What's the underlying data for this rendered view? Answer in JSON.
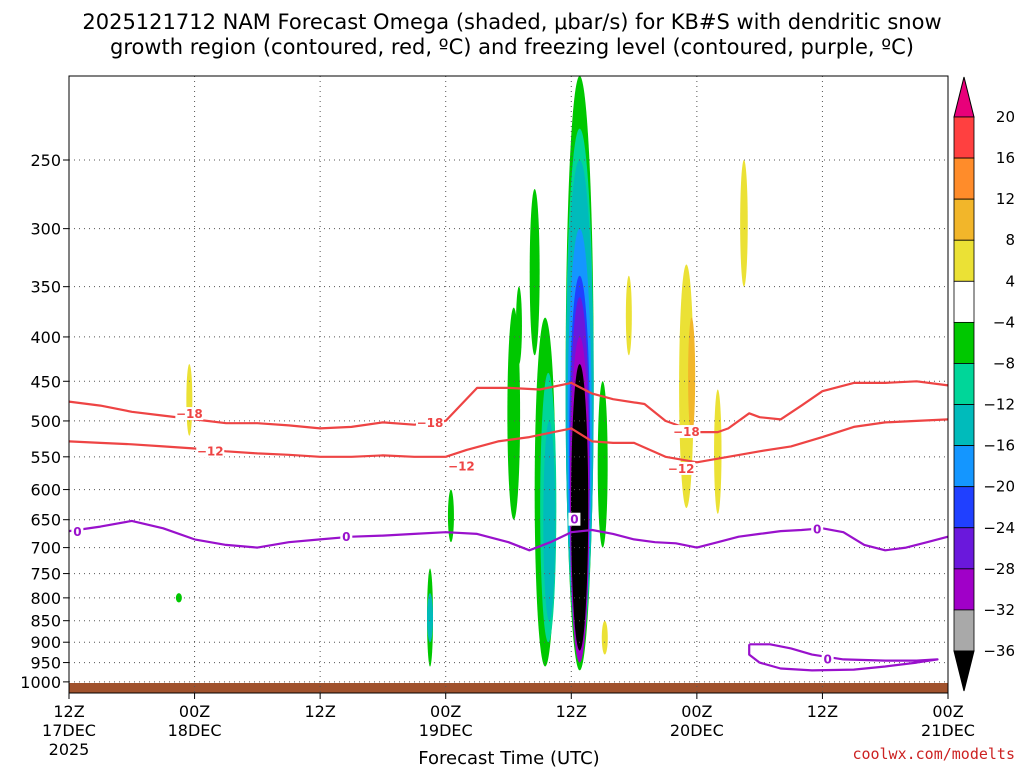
{
  "chart_data": {
    "type": "time-height contour",
    "title_line1": "2025121712 NAM Forecast Omega (shaded, μbar/s) for KB#S with dendritic snow",
    "title_line2": "growth region (contoured, red, ºC) and freezing level (contoured, purple, ºC)",
    "xlabel": "Forecast Time (UTC)",
    "credit": "coolwx.com/modelts",
    "x_range_hours": [
      0,
      84
    ],
    "y_range_hPa": [
      200,
      1030
    ],
    "x_ticks": [
      {
        "hour": 0,
        "line1": "12Z",
        "line2": "17DEC",
        "line3": "2025"
      },
      {
        "hour": 12,
        "line1": "00Z",
        "line2": "18DEC",
        "line3": ""
      },
      {
        "hour": 24,
        "line1": "12Z",
        "line2": "",
        "line3": ""
      },
      {
        "hour": 36,
        "line1": "00Z",
        "line2": "19DEC",
        "line3": ""
      },
      {
        "hour": 48,
        "line1": "12Z",
        "line2": "",
        "line3": ""
      },
      {
        "hour": 60,
        "line1": "00Z",
        "line2": "20DEC",
        "line3": ""
      },
      {
        "hour": 72,
        "line1": "12Z",
        "line2": "",
        "line3": ""
      },
      {
        "hour": 84,
        "line1": "00Z",
        "line2": "21DEC",
        "line3": ""
      }
    ],
    "y_ticks": [
      "250",
      "300",
      "350",
      "400",
      "450",
      "500",
      "550",
      "600",
      "650",
      "700",
      "750",
      "800",
      "850",
      "900",
      "950",
      "1000"
    ],
    "y_tick_values": [
      250,
      300,
      350,
      400,
      450,
      500,
      550,
      600,
      650,
      700,
      750,
      800,
      850,
      900,
      950,
      1000
    ],
    "colorbar": {
      "labels": [
        "20",
        "16",
        "12",
        "8",
        "4",
        "−4",
        "−8",
        "−12",
        "−16",
        "−20",
        "−24",
        "−28",
        "−32",
        "−36"
      ],
      "colors": [
        "#e8007a",
        "#ff4040",
        "#ff8c2a",
        "#f2b62a",
        "#ebe135",
        "#ffffff",
        "#00c800",
        "#00d699",
        "#00bbbb",
        "#1496ff",
        "#2040ff",
        "#6a18dc",
        "#a000c8",
        "#a9a9a9",
        "#000000"
      ]
    },
    "colors": {
      "dgz": "#ee4444",
      "freezing": "#9911cc",
      "terrain": "#a0522d",
      "credit": "#cc2222"
    },
    "dgz_minus18": [
      [
        0,
        475
      ],
      [
        3,
        480
      ],
      [
        6,
        488
      ],
      [
        9,
        493
      ],
      [
        12,
        498
      ],
      [
        15,
        503
      ],
      [
        18,
        503
      ],
      [
        21,
        506
      ],
      [
        24,
        510
      ],
      [
        27,
        508
      ],
      [
        30,
        502
      ],
      [
        33,
        505
      ],
      [
        36,
        500
      ],
      [
        39,
        458
      ],
      [
        42,
        458
      ],
      [
        45,
        460
      ],
      [
        48,
        452
      ],
      [
        50,
        465
      ],
      [
        52,
        472
      ],
      [
        55,
        478
      ],
      [
        57,
        500
      ],
      [
        60,
        515
      ],
      [
        62,
        515
      ],
      [
        63,
        510
      ],
      [
        65,
        490
      ],
      [
        66,
        495
      ],
      [
        68,
        498
      ],
      [
        70,
        480
      ],
      [
        72,
        462
      ],
      [
        75,
        452
      ],
      [
        78,
        452
      ],
      [
        81,
        450
      ],
      [
        84,
        455
      ]
    ],
    "dgz_minus12": [
      [
        0,
        528
      ],
      [
        3,
        530
      ],
      [
        6,
        532
      ],
      [
        9,
        535
      ],
      [
        12,
        538
      ],
      [
        15,
        542
      ],
      [
        18,
        545
      ],
      [
        21,
        547
      ],
      [
        24,
        550
      ],
      [
        27,
        550
      ],
      [
        30,
        548
      ],
      [
        33,
        550
      ],
      [
        36,
        550
      ],
      [
        38,
        540
      ],
      [
        41,
        528
      ],
      [
        44,
        522
      ],
      [
        48,
        510
      ],
      [
        50,
        528
      ],
      [
        52,
        530
      ],
      [
        54,
        530
      ],
      [
        57,
        550
      ],
      [
        60,
        558
      ],
      [
        63,
        550
      ],
      [
        66,
        542
      ],
      [
        69,
        535
      ],
      [
        72,
        522
      ],
      [
        75,
        508
      ],
      [
        78,
        502
      ],
      [
        81,
        500
      ],
      [
        84,
        498
      ]
    ],
    "freezing_0": [
      [
        0,
        670
      ],
      [
        3,
        662
      ],
      [
        6,
        652
      ],
      [
        9,
        665
      ],
      [
        12,
        685
      ],
      [
        15,
        695
      ],
      [
        18,
        700
      ],
      [
        21,
        690
      ],
      [
        24,
        685
      ],
      [
        27,
        680
      ],
      [
        30,
        678
      ],
      [
        33,
        675
      ],
      [
        36,
        672
      ],
      [
        39,
        675
      ],
      [
        42,
        690
      ],
      [
        44,
        705
      ],
      [
        46,
        690
      ],
      [
        48,
        672
      ],
      [
        50,
        668
      ],
      [
        52,
        675
      ],
      [
        54,
        685
      ],
      [
        56,
        690
      ],
      [
        58,
        692
      ],
      [
        60,
        700
      ],
      [
        62,
        690
      ],
      [
        64,
        680
      ],
      [
        66,
        675
      ],
      [
        68,
        670
      ],
      [
        70,
        668
      ],
      [
        72,
        665
      ],
      [
        74,
        672
      ],
      [
        76,
        695
      ],
      [
        78,
        705
      ],
      [
        80,
        700
      ],
      [
        82,
        690
      ],
      [
        84,
        680
      ]
    ],
    "freezing_low": [
      [
        65,
        905
      ],
      [
        67,
        905
      ],
      [
        69,
        915
      ],
      [
        71,
        930
      ],
      [
        74,
        942
      ],
      [
        78,
        945
      ],
      [
        81,
        945
      ],
      [
        83,
        942
      ],
      [
        81,
        950
      ],
      [
        78,
        960
      ],
      [
        75,
        968
      ],
      [
        71,
        970
      ],
      [
        68,
        965
      ],
      [
        66,
        950
      ],
      [
        65,
        930
      ],
      [
        65,
        905
      ]
    ],
    "contour_labels": [
      {
        "text": "−18",
        "hour": 11.5,
        "hPa": 491,
        "kind": "dgz"
      },
      {
        "text": "−18",
        "hour": 34.5,
        "hPa": 503,
        "kind": "dgz"
      },
      {
        "text": "−18",
        "hour": 59.0,
        "hPa": 515,
        "kind": "dgz"
      },
      {
        "text": "−12",
        "hour": 13.5,
        "hPa": 542,
        "kind": "dgz"
      },
      {
        "text": "−12",
        "hour": 37.5,
        "hPa": 564,
        "kind": "dgz"
      },
      {
        "text": "−12",
        "hour": 58.5,
        "hPa": 568,
        "kind": "dgz"
      },
      {
        "text": "0",
        "hour": 0.8,
        "hPa": 672,
        "kind": "frz"
      },
      {
        "text": "0",
        "hour": 26.5,
        "hPa": 681,
        "kind": "frz"
      },
      {
        "text": "0",
        "hour": 48.3,
        "hPa": 650,
        "kind": "frz"
      },
      {
        "text": "0",
        "hour": 71.5,
        "hPa": 667,
        "kind": "frz"
      },
      {
        "text": "0",
        "hour": 72.5,
        "hPa": 942,
        "kind": "frz"
      }
    ],
    "omega_blobs": [
      {
        "color": "#00c800",
        "hour": 44.5,
        "top": 270,
        "bottom": 420
      },
      {
        "color": "#00c800",
        "hour": 42.5,
        "top": 370,
        "bottom": 650
      },
      {
        "color": "#00c800",
        "hour": 45.5,
        "top": 380,
        "bottom": 960
      },
      {
        "color": "#00d699",
        "hour": 45.8,
        "top": 440,
        "bottom": 900
      },
      {
        "color": "#00bbbb",
        "hour": 45.9,
        "top": 500,
        "bottom": 850
      },
      {
        "color": "#00c800",
        "hour": 48.8,
        "top": 200,
        "bottom": 970
      },
      {
        "color": "#00d699",
        "hour": 48.8,
        "top": 230,
        "bottom": 930
      },
      {
        "color": "#00bbbb",
        "hour": 48.8,
        "top": 250,
        "bottom": 900
      },
      {
        "color": "#1496ff",
        "hour": 48.8,
        "top": 300,
        "bottom": 880
      },
      {
        "color": "#2040ff",
        "hour": 48.8,
        "top": 340,
        "bottom": 860
      },
      {
        "color": "#6a18dc",
        "hour": 48.8,
        "top": 360,
        "bottom": 850
      },
      {
        "color": "#a000c8",
        "hour": 48.8,
        "top": 400,
        "bottom": 950
      },
      {
        "color": "#000000",
        "hour": 48.8,
        "top": 430,
        "bottom": 920
      },
      {
        "color": "#00c800",
        "hour": 51.0,
        "top": 450,
        "bottom": 700
      },
      {
        "color": "#00c800",
        "hour": 34.5,
        "top": 740,
        "bottom": 960
      },
      {
        "color": "#00bbbb",
        "hour": 34.5,
        "top": 790,
        "bottom": 900
      },
      {
        "color": "#00c800",
        "hour": 36.5,
        "top": 600,
        "bottom": 690
      },
      {
        "color": "#00c800",
        "hour": 43.0,
        "top": 350,
        "bottom": 430
      },
      {
        "color": "#ebe135",
        "hour": 11.5,
        "top": 430,
        "bottom": 520
      },
      {
        "color": "#ebe135",
        "hour": 59.0,
        "top": 330,
        "bottom": 630
      },
      {
        "color": "#f2b62a",
        "hour": 59.5,
        "top": 380,
        "bottom": 520
      },
      {
        "color": "#ebe135",
        "hour": 62.0,
        "top": 460,
        "bottom": 640
      },
      {
        "color": "#ebe135",
        "hour": 64.5,
        "top": 250,
        "bottom": 350
      },
      {
        "color": "#ebe135",
        "hour": 53.5,
        "top": 340,
        "bottom": 420
      },
      {
        "color": "#ebe135",
        "hour": 51.2,
        "top": 850,
        "bottom": 930
      },
      {
        "color": "#00c800",
        "hour": 10.5,
        "top": 790,
        "bottom": 810
      }
    ]
  }
}
